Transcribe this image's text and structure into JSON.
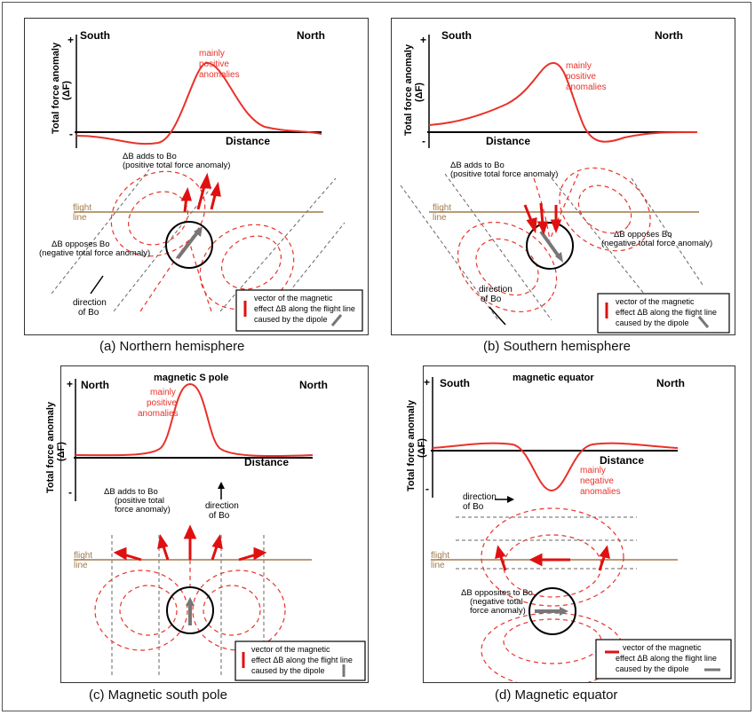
{
  "panels": {
    "a": {
      "caption": "(a) Northern hemisphere",
      "left_label": "South",
      "right_label": "North",
      "y_axis_label": "Total force anomaly",
      "y_axis_symbol": "(ΔF)",
      "plus": "+",
      "minus": "-",
      "distance_label": "Distance",
      "anomaly_label": [
        "mainly",
        "positive",
        "anomalies"
      ],
      "flight_line": [
        "flight",
        "line"
      ],
      "adds_label": [
        "ΔB adds to Bo",
        "(positive total force anomaly)"
      ],
      "opposes_label": [
        "ΔB opposes Bo",
        "(negative total force anomaly)"
      ],
      "direction_label": [
        "direction",
        "of Bo"
      ],
      "legend": [
        "vector of the magnetic",
        "effect ΔB along the flight line",
        "caused by the dipole"
      ]
    },
    "b": {
      "caption": "(b) Southern hemisphere",
      "left_label": "South",
      "right_label": "North",
      "y_axis_label": "Total force anomaly",
      "y_axis_symbol": "(ΔF)",
      "plus": "+",
      "minus": "-",
      "distance_label": "Distance",
      "anomaly_label": [
        "mainly",
        "positive",
        "anomalies"
      ],
      "flight_line": [
        "flight",
        "line"
      ],
      "adds_label": [
        "ΔB adds to Bo",
        "(positive total force anomaly)"
      ],
      "opposes_label": [
        "ΔB opposes Bo",
        "(negative total force anomaly)"
      ],
      "direction_label": [
        "direction",
        "of Bo"
      ],
      "legend": [
        "vector of the magnetic",
        "effect ΔB along the flight line",
        "caused by the dipole"
      ]
    },
    "c": {
      "caption": "(c) Magnetic south pole",
      "title": "magnetic S pole",
      "left_label": "North",
      "right_label": "North",
      "y_axis_label": "Total force anomaly",
      "y_axis_symbol": "(ΔF)",
      "plus": "+",
      "minus": "-",
      "distance_label": "Distance",
      "anomaly_label": [
        "mainly",
        "positive",
        "anomalies"
      ],
      "flight_line": [
        "flight",
        "line"
      ],
      "adds_label": [
        "ΔB adds to Bo",
        "(positive total",
        "force anomaly)"
      ],
      "direction_label": [
        "direction",
        "of Bo"
      ],
      "legend": [
        "vector of the magnetic",
        "effect ΔB along the flight line",
        "caused by the dipole"
      ]
    },
    "d": {
      "caption": "(d) Magnetic equator",
      "title": "magnetic equator",
      "left_label": "South",
      "right_label": "North",
      "y_axis_label": "Total force anomaly",
      "y_axis_symbol": "(ΔF)",
      "plus": "+",
      "minus": "-",
      "distance_label": "Distance",
      "anomaly_label": [
        "mainly",
        "negative",
        "anomalies"
      ],
      "flight_line": [
        "flight",
        "line"
      ],
      "opposes_label": [
        "ΔB opposites to Bo",
        "(negative total",
        "force anomaly)"
      ],
      "direction_label": [
        "direction",
        "of Bo"
      ],
      "legend": [
        "vector of the magnetic",
        "effect ΔB along the flight line",
        "caused by the dipole"
      ]
    }
  },
  "colors": {
    "field_line": "#e8322a",
    "anomaly_curve": "#e8322a",
    "vector": "#e01010",
    "flight_line": "#a07a4a",
    "dipole_arrow": "#777777",
    "guide": "#666666"
  }
}
